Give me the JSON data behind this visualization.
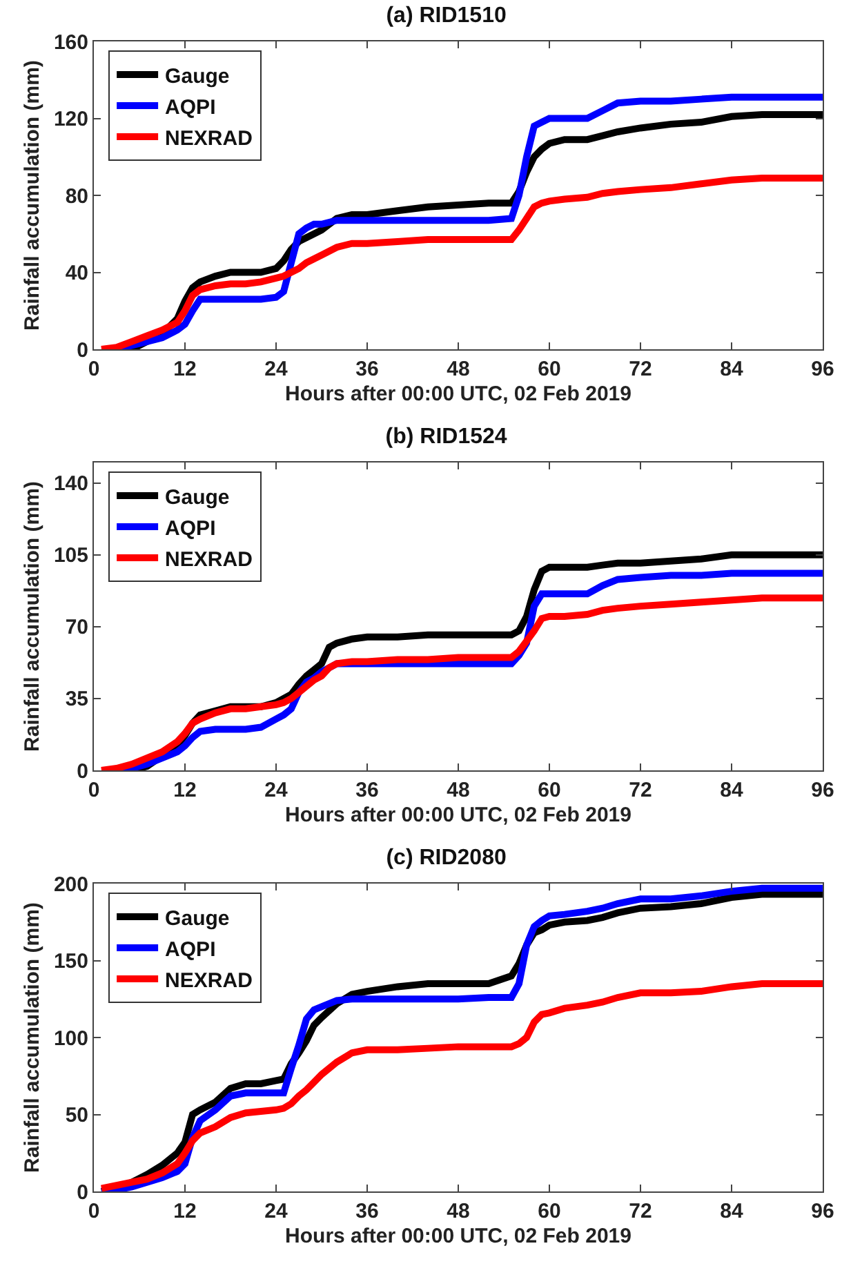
{
  "chart_data": [
    {
      "type": "line",
      "title": "(a) RID1510",
      "xlabel": "Hours after 00:00 UTC, 02 Feb 2019",
      "ylabel": "Rainfall accumulation (mm)",
      "xlim": [
        0,
        96
      ],
      "xticks": [
        0,
        12,
        24,
        36,
        48,
        60,
        72,
        84,
        96
      ],
      "ylim": [
        0,
        160
      ],
      "yticks": [
        0,
        40,
        80,
        120,
        160
      ],
      "grid": false,
      "legend": "top left",
      "marker": "none",
      "line_style": "solid",
      "x": [
        1,
        3,
        5,
        7,
        9,
        11,
        12,
        13,
        14,
        16,
        18,
        20,
        22,
        24,
        25,
        26,
        27,
        28,
        29,
        30,
        32,
        34,
        36,
        40,
        44,
        48,
        52,
        55,
        56,
        57,
        58,
        59,
        60,
        62,
        65,
        67,
        69,
        72,
        76,
        80,
        84,
        88,
        92,
        96
      ],
      "series": [
        {
          "name": "Gauge",
          "color": "#000000",
          "values": [
            0,
            0,
            0,
            4,
            8,
            16,
            25,
            32,
            35,
            38,
            40,
            40,
            40,
            42,
            46,
            52,
            56,
            58,
            60,
            62,
            68,
            70,
            70,
            72,
            74,
            75,
            76,
            76,
            82,
            92,
            100,
            104,
            107,
            109,
            109,
            111,
            113,
            115,
            117,
            118,
            121,
            122,
            122,
            122
          ]
        },
        {
          "name": "AQPI",
          "color": "#0000ff",
          "values": [
            0,
            0,
            2,
            4,
            6,
            10,
            13,
            20,
            26,
            26,
            26,
            26,
            26,
            27,
            30,
            45,
            60,
            63,
            65,
            65,
            67,
            67,
            67,
            67,
            67,
            67,
            67,
            68,
            80,
            100,
            116,
            118,
            120,
            120,
            120,
            124,
            128,
            129,
            129,
            130,
            131,
            131,
            131,
            131
          ]
        },
        {
          "name": "NEXRAD",
          "color": "#ff0000",
          "values": [
            0,
            1,
            4,
            7,
            10,
            14,
            20,
            28,
            31,
            33,
            34,
            34,
            35,
            37,
            38,
            40,
            42,
            45,
            47,
            49,
            53,
            55,
            55,
            56,
            57,
            57,
            57,
            57,
            62,
            68,
            74,
            76,
            77,
            78,
            79,
            81,
            82,
            83,
            84,
            86,
            88,
            89,
            89,
            89
          ]
        }
      ]
    },
    {
      "type": "line",
      "title": "(b) RID1524",
      "xlabel": "Hours after 00:00 UTC, 02 Feb 2019",
      "ylabel": "Rainfall accumulation (mm)",
      "xlim": [
        0,
        96
      ],
      "xticks": [
        0,
        12,
        24,
        36,
        48,
        60,
        72,
        84,
        96
      ],
      "ylim": [
        0,
        150
      ],
      "yticks": [
        0,
        35,
        70,
        105,
        140
      ],
      "grid": false,
      "legend": "top left",
      "marker": "none",
      "line_style": "solid",
      "x": [
        1,
        3,
        5,
        7,
        9,
        11,
        12,
        13,
        14,
        16,
        18,
        20,
        22,
        24,
        25,
        26,
        27,
        28,
        29,
        30,
        31,
        32,
        34,
        36,
        40,
        44,
        48,
        52,
        55,
        56,
        57,
        58,
        59,
        60,
        62,
        65,
        67,
        69,
        72,
        76,
        80,
        84,
        88,
        92,
        96
      ],
      "series": [
        {
          "name": "Gauge",
          "color": "#000000",
          "values": [
            0,
            0,
            0,
            2,
            7,
            12,
            17,
            23,
            27,
            29,
            31,
            31,
            31,
            33,
            35,
            37,
            42,
            46,
            49,
            52,
            60,
            62,
            64,
            65,
            65,
            66,
            66,
            66,
            66,
            68,
            75,
            88,
            97,
            99,
            99,
            99,
            100,
            101,
            101,
            102,
            103,
            105,
            105,
            105,
            105
          ]
        },
        {
          "name": "AQPI",
          "color": "#0000ff",
          "values": [
            0,
            0,
            1,
            3,
            6,
            9,
            12,
            16,
            19,
            20,
            20,
            20,
            21,
            25,
            27,
            30,
            38,
            43,
            45,
            48,
            50,
            52,
            52,
            52,
            52,
            52,
            52,
            52,
            52,
            56,
            62,
            80,
            86,
            86,
            86,
            86,
            90,
            93,
            94,
            95,
            95,
            96,
            96,
            96,
            96
          ]
        },
        {
          "name": "NEXRAD",
          "color": "#ff0000",
          "values": [
            0,
            1,
            3,
            6,
            9,
            14,
            18,
            23,
            25,
            28,
            30,
            30,
            31,
            32,
            33,
            35,
            38,
            41,
            44,
            46,
            50,
            52,
            53,
            53,
            54,
            54,
            55,
            55,
            55,
            58,
            63,
            68,
            74,
            75,
            75,
            76,
            78,
            79,
            80,
            81,
            82,
            83,
            84,
            84,
            84
          ]
        }
      ]
    },
    {
      "type": "line",
      "title": "(c) RID2080",
      "xlabel": "Hours after 00:00 UTC, 02 Feb 2019",
      "ylabel": "Rainfall accumulation (mm)",
      "xlim": [
        0,
        96
      ],
      "xticks": [
        0,
        12,
        24,
        36,
        48,
        60,
        72,
        84,
        96
      ],
      "ylim": [
        0,
        200
      ],
      "yticks": [
        0,
        50,
        100,
        150,
        200
      ],
      "grid": false,
      "legend": "top left",
      "marker": "none",
      "line_style": "solid",
      "x": [
        1,
        3,
        5,
        7,
        9,
        11,
        12,
        13,
        14,
        16,
        18,
        20,
        22,
        24,
        25,
        26,
        27,
        28,
        29,
        30,
        32,
        34,
        36,
        40,
        44,
        48,
        52,
        55,
        56,
        57,
        58,
        59,
        60,
        62,
        65,
        67,
        69,
        72,
        76,
        80,
        84,
        88,
        92,
        96
      ],
      "series": [
        {
          "name": "Gauge",
          "color": "#000000",
          "values": [
            0,
            2,
            6,
            11,
            17,
            25,
            32,
            50,
            53,
            58,
            67,
            70,
            70,
            72,
            73,
            83,
            90,
            98,
            108,
            113,
            122,
            128,
            130,
            133,
            135,
            135,
            135,
            140,
            148,
            160,
            168,
            170,
            173,
            175,
            176,
            178,
            181,
            184,
            185,
            187,
            191,
            193,
            193,
            193
          ]
        },
        {
          "name": "AQPI",
          "color": "#0000ff",
          "values": [
            0,
            1,
            3,
            6,
            9,
            13,
            18,
            35,
            46,
            53,
            62,
            64,
            64,
            64,
            64,
            80,
            95,
            112,
            118,
            120,
            124,
            125,
            125,
            125,
            125,
            125,
            126,
            126,
            135,
            160,
            172,
            176,
            179,
            180,
            182,
            184,
            187,
            190,
            190,
            192,
            195,
            197,
            197,
            197
          ]
        },
        {
          "name": "NEXRAD",
          "color": "#ff0000",
          "values": [
            2,
            4,
            6,
            8,
            12,
            18,
            25,
            33,
            38,
            42,
            48,
            51,
            52,
            53,
            54,
            57,
            62,
            66,
            71,
            76,
            84,
            90,
            92,
            92,
            93,
            94,
            94,
            94,
            96,
            100,
            110,
            115,
            116,
            119,
            121,
            123,
            126,
            129,
            129,
            130,
            133,
            135,
            135,
            135
          ]
        }
      ]
    }
  ]
}
